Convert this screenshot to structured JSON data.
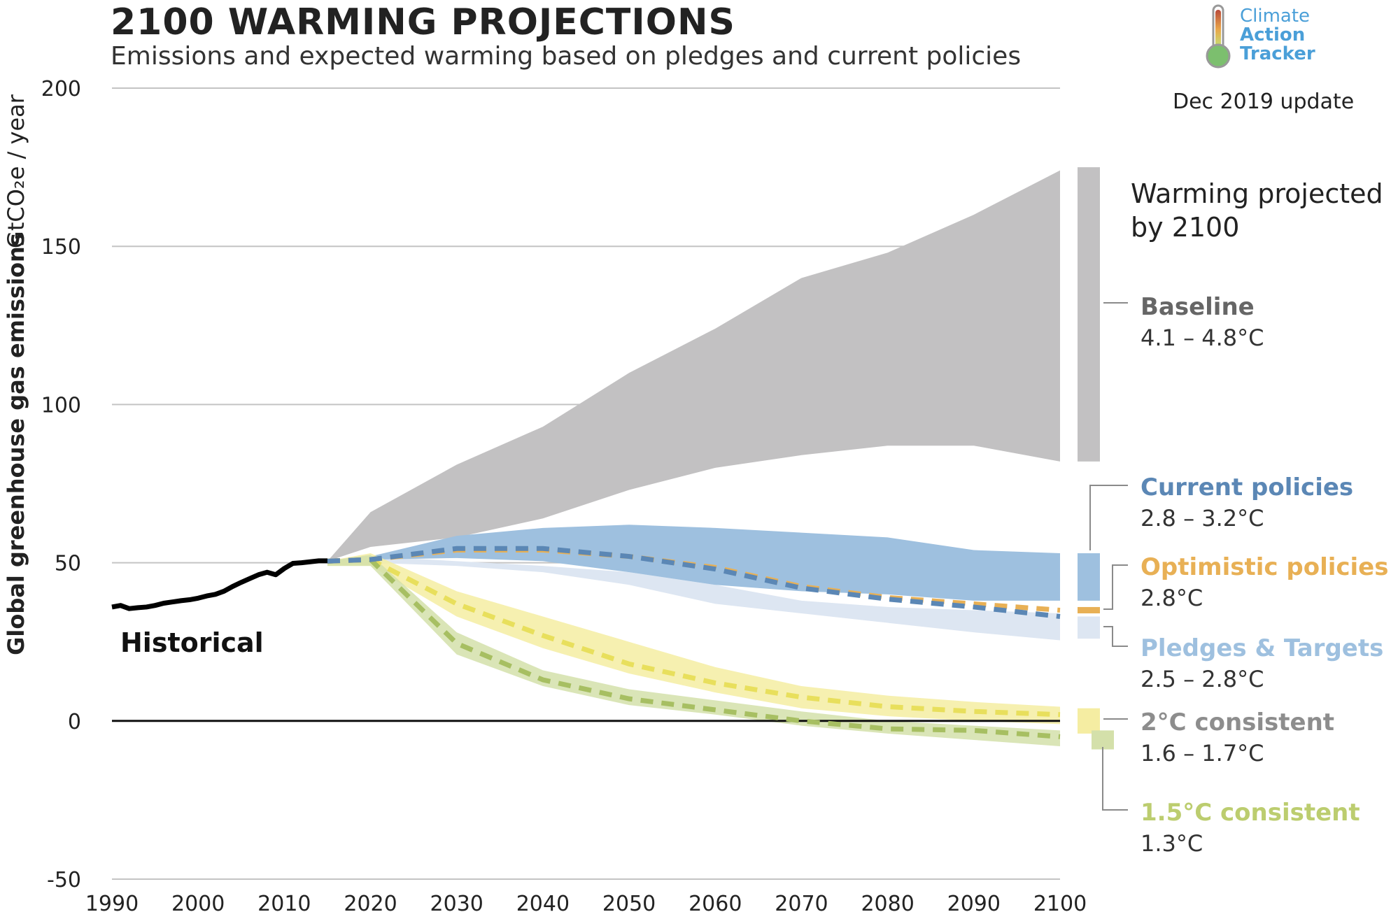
{
  "header": {
    "title": "2100 WARMING PROJECTIONS",
    "subtitle": "Emissions and expected warming based on pledges and current policies",
    "update": "Dec 2019 update"
  },
  "logo": {
    "line1": "Climate",
    "line2": "Action",
    "line3": "Tracker",
    "icon": "thermometer-icon"
  },
  "colors": {
    "baseline": "#c2c1c2",
    "current": "#9ec0df",
    "current_line": "#5b87b5",
    "optimistic": "#e8b055",
    "pledges": "#dde6f2",
    "pledges_label": "#9ec0df",
    "two_c": "#f5eda2",
    "two_c_line": "#e8df5c",
    "one_five": "#d4e0aa",
    "one_five_line": "#a7bf62",
    "baseline_label": "#666666",
    "two_c_label": "#8d8d8d",
    "one_five_label": "#bccd6f"
  },
  "chart_data": {
    "type": "area",
    "ylabel": "Global greenhouse gas emissions",
    "ylabel_unit": "GtCO₂e / year",
    "ylim": [
      -50,
      200
    ],
    "xlim": [
      1990,
      2100
    ],
    "yticks": [
      200,
      150,
      100,
      50,
      0,
      -50
    ],
    "xticks": [
      1990,
      2000,
      2010,
      2020,
      2030,
      2040,
      2050,
      2060,
      2070,
      2080,
      2090,
      2100
    ],
    "grid": true,
    "historical": {
      "name": "Historical",
      "x": [
        1990,
        1991,
        1992,
        1993,
        1994,
        1995,
        1996,
        1997,
        1998,
        1999,
        2000,
        2001,
        2002,
        2003,
        2004,
        2005,
        2006,
        2007,
        2008,
        2009,
        2010,
        2011,
        2012,
        2013,
        2014,
        2015
      ],
      "y": [
        36,
        36.5,
        35.5,
        35.8,
        36,
        36.5,
        37.2,
        37.6,
        38,
        38.3,
        38.8,
        39.5,
        40,
        41,
        42.5,
        43.8,
        45,
        46.2,
        47,
        46.2,
        48.2,
        49.8,
        50,
        50.3,
        50.6,
        50.6
      ]
    },
    "bands": [
      {
        "name": "Baseline",
        "x": [
          2015,
          2020,
          2030,
          2040,
          2050,
          2060,
          2070,
          2080,
          2090,
          2100
        ],
        "upper": [
          50.5,
          66,
          81,
          93,
          110,
          124,
          140,
          148,
          160,
          174
        ],
        "lower": [
          50.5,
          55,
          58,
          64,
          73,
          80,
          84,
          87,
          87,
          82
        ]
      },
      {
        "name": "Current policies",
        "x": [
          2015,
          2020,
          2030,
          2040,
          2050,
          2060,
          2070,
          2080,
          2090,
          2100
        ],
        "upper": [
          50.5,
          52,
          58.5,
          61,
          62,
          61,
          59.5,
          58,
          54,
          53
        ],
        "lower": [
          50,
          51,
          51.5,
          50.5,
          47,
          43,
          41,
          40,
          38,
          38
        ]
      },
      {
        "name": "Pledges & Targets",
        "x": [
          2015,
          2020,
          2030,
          2040,
          2050,
          2060,
          2070,
          2080,
          2090,
          2100
        ],
        "upper": [
          50.5,
          52,
          50.5,
          49,
          47,
          43,
          38,
          36,
          35,
          34
        ],
        "lower": [
          50,
          50,
          49,
          47,
          43,
          37,
          34,
          31,
          28,
          25.5
        ]
      },
      {
        "name": "2°C consistent",
        "x": [
          2015,
          2020,
          2030,
          2040,
          2050,
          2060,
          2070,
          2080,
          2090,
          2100
        ],
        "upper": [
          50.5,
          53,
          41,
          33,
          25,
          17,
          11,
          8,
          6,
          4.5
        ],
        "lower": [
          49,
          49,
          33,
          23,
          15,
          9,
          4,
          1.5,
          0,
          -1
        ]
      },
      {
        "name": "1.5°C consistent",
        "x": [
          2015,
          2020,
          2030,
          2040,
          2050,
          2060,
          2070,
          2080,
          2090,
          2100
        ],
        "upper": [
          50.5,
          52.5,
          28,
          16,
          10,
          6.5,
          3,
          0,
          -1.5,
          -3
        ],
        "lower": [
          49,
          49,
          21,
          11,
          5,
          2,
          -1.5,
          -4,
          -6,
          -8
        ]
      }
    ],
    "lines": [
      {
        "name": "Current policies",
        "x": [
          2015,
          2020,
          2030,
          2040,
          2050,
          2060,
          2070,
          2080,
          2090,
          2100
        ],
        "y": [
          50.5,
          51,
          54.5,
          54.5,
          52,
          48,
          42,
          38.5,
          36,
          33
        ]
      },
      {
        "name": "Optimistic policies",
        "x": [
          2015,
          2020,
          2030,
          2040,
          2050,
          2060,
          2070,
          2080,
          2090,
          2100
        ],
        "y": [
          50.5,
          51,
          54,
          54,
          52,
          48.5,
          42.5,
          39,
          37,
          35
        ]
      },
      {
        "name": "2°C consistent",
        "x": [
          2015,
          2020,
          2030,
          2040,
          2050,
          2060,
          2070,
          2080,
          2090,
          2100
        ],
        "y": [
          50.5,
          51,
          37,
          27,
          18,
          12,
          7.5,
          4.5,
          3,
          2
        ]
      },
      {
        "name": "1.5°C consistent",
        "x": [
          2015,
          2020,
          2030,
          2040,
          2050,
          2060,
          2070,
          2080,
          2090,
          2100
        ],
        "y": [
          50.5,
          51,
          24.5,
          13,
          7,
          3.5,
          0,
          -2.5,
          -3,
          -5
        ]
      }
    ],
    "warming_bars": [
      {
        "name": "Baseline",
        "range": [
          82,
          175
        ]
      },
      {
        "name": "Current policies",
        "range": [
          38,
          53
        ]
      },
      {
        "name": "Optimistic policies",
        "range": [
          34,
          36
        ]
      },
      {
        "name": "Pledges & Targets",
        "range": [
          26,
          33
        ]
      },
      {
        "name": "2°C consistent",
        "range": [
          -4,
          4
        ]
      },
      {
        "name": "1.5°C consistent",
        "range": [
          -9,
          -3
        ]
      }
    ],
    "legend_heading": [
      "Warming projected",
      "by 2100"
    ],
    "legend": [
      {
        "name": "Baseline",
        "range": "4.1 – 4.8°C"
      },
      {
        "name": "Current policies",
        "range": "2.8 – 3.2°C"
      },
      {
        "name": "Optimistic policies",
        "range": "2.8°C"
      },
      {
        "name": "Pledges & Targets",
        "range": "2.5 – 2.8°C"
      },
      {
        "name": "2°C consistent",
        "range": "1.6 – 1.7°C"
      },
      {
        "name": "1.5°C consistent",
        "range": "1.3°C"
      }
    ]
  }
}
